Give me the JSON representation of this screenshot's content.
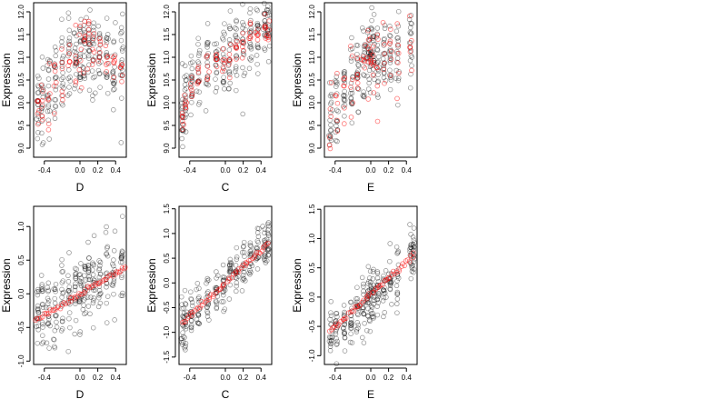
{
  "chart_data": [
    {
      "type": "scatter",
      "panel": "top-left",
      "xlabel": "D",
      "ylabel": "Expression",
      "xlim": [
        -0.52,
        0.52
      ],
      "ylim": [
        8.8,
        12.2
      ],
      "xticks": [
        -0.4,
        0.0,
        0.2,
        0.4
      ],
      "xtick_labels": [
        "-0.4",
        "0.0",
        "0.2",
        "0.4"
      ],
      "yticks": [
        9.0,
        9.5,
        10.0,
        10.5,
        11.0,
        11.5,
        12.0
      ],
      "ytick_labels": [
        "9.0",
        "9.5",
        "10.0",
        "10.5",
        "11.0",
        "11.5",
        "12.0"
      ],
      "series": [
        {
          "role": "observed",
          "color": "#000000",
          "x_columns": [
            -0.47,
            -0.42,
            -0.35,
            -0.28,
            -0.2,
            -0.12,
            -0.05,
            0.0,
            0.05,
            0.1,
            0.15,
            0.22,
            0.3,
            0.38,
            0.47
          ],
          "y_center": [
            9.9,
            10.0,
            10.2,
            10.4,
            10.6,
            10.9,
            11.0,
            11.1,
            11.2,
            11.3,
            11.2,
            11.1,
            11.0,
            10.9,
            10.8
          ],
          "y_spread": 0.9
        },
        {
          "role": "fitted",
          "color": "#ff0000",
          "x_columns": [
            -0.47,
            -0.42,
            -0.35,
            -0.28,
            -0.2,
            -0.12,
            -0.05,
            0.0,
            0.05,
            0.1,
            0.15,
            0.22,
            0.3,
            0.38,
            0.47
          ],
          "y_center": [
            9.9,
            10.0,
            10.2,
            10.4,
            10.6,
            10.9,
            11.0,
            11.1,
            11.2,
            11.3,
            11.2,
            11.1,
            11.0,
            10.9,
            10.8
          ],
          "y_spread": 0.55
        }
      ]
    },
    {
      "type": "scatter",
      "panel": "top-middle",
      "xlabel": "C",
      "ylabel": "Expression",
      "xlim": [
        -0.52,
        0.52
      ],
      "ylim": [
        8.8,
        12.2
      ],
      "xticks": [
        -0.4,
        0.0,
        0.2,
        0.4
      ],
      "xtick_labels": [
        "-0.4",
        "0.0",
        "0.2",
        "0.4"
      ],
      "yticks": [
        9.0,
        9.5,
        10.0,
        10.5,
        11.0,
        11.5,
        12.0
      ],
      "ytick_labels": [
        "9.0",
        "9.5",
        "10.0",
        "10.5",
        "11.0",
        "11.5",
        "12.0"
      ],
      "series": [
        {
          "role": "observed",
          "color": "#000000",
          "x_columns": [
            -0.48,
            -0.45,
            -0.38,
            -0.3,
            -0.2,
            -0.1,
            -0.02,
            0.05,
            0.12,
            0.2,
            0.28,
            0.36,
            0.44,
            0.48
          ],
          "y_center": [
            9.6,
            10.0,
            10.3,
            10.6,
            10.8,
            10.9,
            11.0,
            11.1,
            11.2,
            11.3,
            11.4,
            11.5,
            11.6,
            11.6
          ],
          "y_spread": 0.7
        },
        {
          "role": "fitted",
          "color": "#ff0000",
          "x_columns": [
            -0.48,
            -0.45,
            -0.38,
            -0.3,
            -0.2,
            -0.1,
            -0.02,
            0.05,
            0.12,
            0.2,
            0.28,
            0.36,
            0.44,
            0.48
          ],
          "y_center": [
            9.6,
            10.0,
            10.3,
            10.6,
            10.8,
            10.9,
            11.0,
            11.1,
            11.2,
            11.3,
            11.4,
            11.5,
            11.6,
            11.6
          ],
          "y_spread": 0.35
        }
      ]
    },
    {
      "type": "scatter",
      "panel": "top-right",
      "xlabel": "E",
      "ylabel": "Expression",
      "xlim": [
        -0.52,
        0.52
      ],
      "ylim": [
        8.8,
        12.2
      ],
      "xticks": [
        -0.4,
        0.0,
        0.2,
        0.4
      ],
      "xtick_labels": [
        "-0.4",
        "0.0",
        "0.2",
        "0.4"
      ],
      "yticks": [
        9.0,
        9.5,
        10.0,
        10.5,
        11.0,
        11.5,
        12.0
      ],
      "ytick_labels": [
        "9.0",
        "9.5",
        "10.0",
        "10.5",
        "11.0",
        "11.5",
        "12.0"
      ],
      "series": [
        {
          "role": "observed",
          "color": "#000000",
          "x_columns": [
            -0.45,
            -0.38,
            -0.3,
            -0.22,
            -0.15,
            -0.08,
            -0.03,
            0.0,
            0.03,
            0.08,
            0.15,
            0.22,
            0.3,
            0.45
          ],
          "y_center": [
            9.8,
            10.0,
            10.2,
            10.4,
            10.6,
            10.8,
            11.0,
            11.2,
            11.0,
            10.8,
            10.9,
            11.0,
            11.1,
            11.3
          ],
          "y_spread": 0.8
        },
        {
          "role": "fitted",
          "color": "#ff0000",
          "x_columns": [
            -0.45,
            -0.38,
            -0.3,
            -0.22,
            -0.15,
            -0.08,
            -0.03,
            0.0,
            0.03,
            0.08,
            0.15,
            0.22,
            0.3,
            0.45
          ],
          "y_center": [
            9.8,
            10.0,
            10.2,
            10.4,
            10.6,
            10.8,
            11.0,
            11.2,
            11.0,
            10.8,
            10.9,
            11.0,
            11.1,
            11.3
          ],
          "y_spread": 0.7
        }
      ]
    },
    {
      "type": "scatter",
      "panel": "bottom-left",
      "xlabel": "D",
      "ylabel": "Expression",
      "xlim": [
        -0.52,
        0.52
      ],
      "ylim": [
        -1.05,
        1.3
      ],
      "xticks": [
        -0.4,
        0.0,
        0.2,
        0.4
      ],
      "xtick_labels": [
        "-0.4",
        "0.0",
        "0.2",
        "0.4"
      ],
      "yticks": [
        -1.0,
        -0.5,
        0.0,
        0.5,
        1.0
      ],
      "ytick_labels": [
        "-1.0",
        "-0.5",
        "0.0",
        "0.5",
        "1.0"
      ],
      "series": [
        {
          "role": "observed",
          "color": "#000000",
          "x_columns": [
            -0.47,
            -0.42,
            -0.35,
            -0.28,
            -0.2,
            -0.12,
            -0.05,
            0.0,
            0.05,
            0.1,
            0.15,
            0.22,
            0.3,
            0.38,
            0.47
          ],
          "y_center": [
            -0.35,
            -0.3,
            -0.25,
            -0.2,
            -0.1,
            -0.05,
            0.0,
            0.05,
            0.1,
            0.15,
            0.15,
            0.2,
            0.25,
            0.3,
            0.35
          ],
          "y_spread": 0.5
        },
        {
          "role": "fitted",
          "color": "#ff0000",
          "line": {
            "x": [
              -0.5,
              0.52
            ],
            "y": [
              -0.4,
              0.4
            ]
          }
        }
      ]
    },
    {
      "type": "scatter",
      "panel": "bottom-middle",
      "xlabel": "C",
      "ylabel": "Expression",
      "xlim": [
        -0.52,
        0.52
      ],
      "ylim": [
        -1.65,
        1.55
      ],
      "xticks": [
        -0.4,
        0.0,
        0.2,
        0.4
      ],
      "xtick_labels": [
        "-0.4",
        "0.0",
        "0.2",
        "0.4"
      ],
      "yticks": [
        -1.5,
        -1.0,
        -0.5,
        0.0,
        0.5,
        1.0,
        1.5
      ],
      "ytick_labels": [
        "-1.5",
        "-1.0",
        "-0.5",
        "0.0",
        "0.5",
        "1.0",
        "1.5"
      ],
      "series": [
        {
          "role": "observed",
          "color": "#000000",
          "x_columns": [
            -0.48,
            -0.45,
            -0.38,
            -0.3,
            -0.2,
            -0.1,
            -0.02,
            0.05,
            0.12,
            0.2,
            0.28,
            0.36,
            0.44,
            0.48
          ],
          "y_center": [
            -0.9,
            -0.8,
            -0.6,
            -0.45,
            -0.3,
            -0.15,
            0.0,
            0.1,
            0.2,
            0.3,
            0.45,
            0.6,
            0.75,
            0.8
          ],
          "y_spread": 0.45
        },
        {
          "role": "fitted",
          "color": "#ff0000",
          "line": {
            "x": [
              -0.48,
              0.48
            ],
            "y": [
              -0.8,
              0.8
            ]
          }
        }
      ]
    },
    {
      "type": "scatter",
      "panel": "bottom-right",
      "xlabel": "E",
      "ylabel": "Expression",
      "xlim": [
        -0.52,
        0.52
      ],
      "ylim": [
        -1.15,
        1.55
      ],
      "xticks": [
        -0.4,
        0.0,
        0.2,
        0.4
      ],
      "xtick_labels": [
        "-0.4",
        "0.0",
        "0.2",
        "0.4"
      ],
      "yticks": [
        -1.0,
        -0.5,
        0.0,
        0.5,
        1.0,
        1.5
      ],
      "ytick_labels": [
        "-1.0",
        "-0.5",
        "0.0",
        "0.5",
        "1.0",
        "1.5"
      ],
      "series": [
        {
          "role": "observed",
          "color": "#000000",
          "x_columns": [
            -0.45,
            -0.38,
            -0.3,
            -0.22,
            -0.15,
            -0.08,
            -0.03,
            0.0,
            0.03,
            0.08,
            0.15,
            0.22,
            0.3,
            0.45,
            0.48
          ],
          "y_center": [
            -0.6,
            -0.55,
            -0.45,
            -0.35,
            -0.25,
            -0.15,
            -0.05,
            0.0,
            0.05,
            0.1,
            0.2,
            0.3,
            0.4,
            0.7,
            0.8
          ],
          "y_spread": 0.45
        },
        {
          "role": "fitted",
          "color": "#ff0000",
          "line": {
            "x": [
              -0.46,
              0.48
            ],
            "y": [
              -0.58,
              0.72
            ]
          }
        }
      ]
    }
  ]
}
